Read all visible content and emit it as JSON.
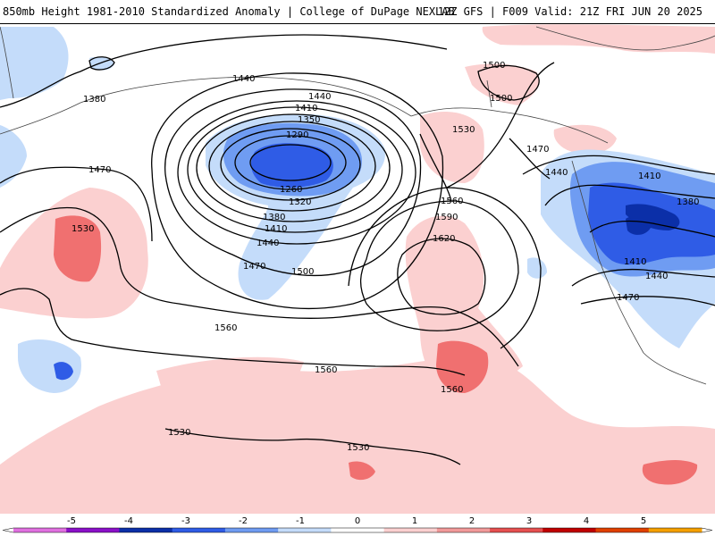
{
  "header": {
    "title_left": "850mb Height 1981-2010 Standardized Anomaly | College of DuPage NEXLAB",
    "title_right": "12Z GFS | F009 Valid: 21Z FRI JUN 20 2025"
  },
  "legend": {
    "ticks": [
      "-5",
      "-4",
      "-3",
      "-2",
      "-1",
      "0",
      "1",
      "2",
      "3",
      "4",
      "5"
    ],
    "colors": [
      "#e070e0",
      "#8a10c8",
      "#0b2fa8",
      "#2f5ce6",
      "#6f9cf2",
      "#c4dcfa",
      "#ffffff",
      "#fbd0d0",
      "#f29a9a",
      "#e65050",
      "#c00000",
      "#e04000",
      "#f5a000"
    ]
  },
  "contour_labels": [
    "1440",
    "1440",
    "1410",
    "1350",
    "1290",
    "1260",
    "1320",
    "1380",
    "1410",
    "1440",
    "1470",
    "1500",
    "1380",
    "1470",
    "1530",
    "1560",
    "1560",
    "1560",
    "1530",
    "1530",
    "1530",
    "1560",
    "1590",
    "1620",
    "1560",
    "1500",
    "1500",
    "1470",
    "1440",
    "1410",
    "1380",
    "1440",
    "1410",
    "1470"
  ]
}
